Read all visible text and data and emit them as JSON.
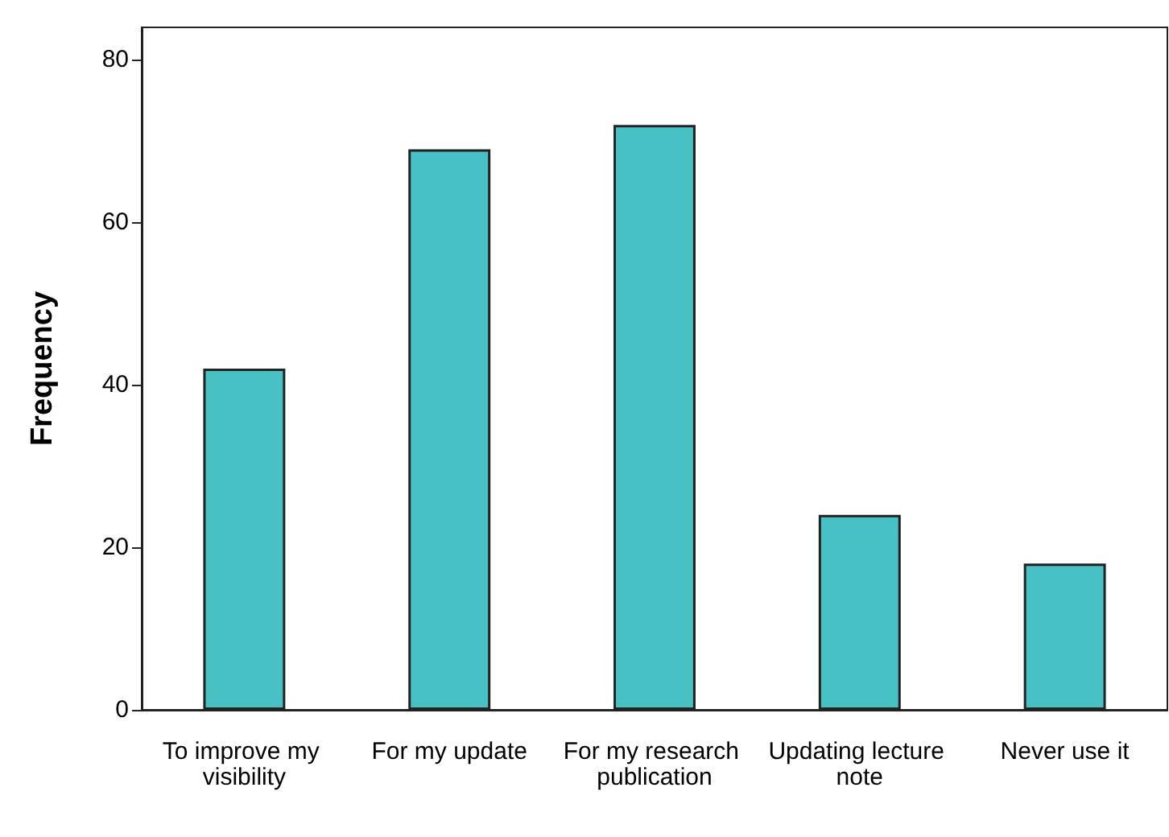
{
  "chart_data": {
    "type": "bar",
    "ylabel": "Frequency",
    "categories": [
      "To improve my visibility",
      "For my update",
      "For my research publication",
      "Updating lecture note",
      "Never use it"
    ],
    "values": [
      42,
      69,
      72,
      24,
      18
    ],
    "color": "#47c1c4",
    "ylim": [
      0,
      84
    ],
    "yticks": [
      0,
      20,
      40,
      60,
      80
    ],
    "grid": false
  }
}
